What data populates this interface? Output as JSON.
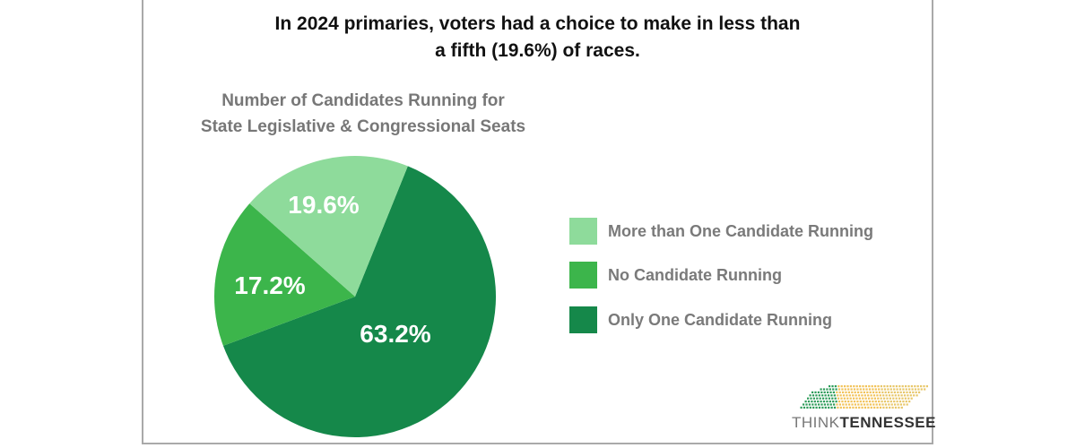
{
  "title_lines": [
    "In 2024 primaries, voters had a choice to make in less than",
    "a fifth (19.6%) of races."
  ],
  "logo": {
    "text_light": "THINK",
    "text_bold": "TENNESSEE"
  },
  "chart_data": {
    "type": "pie",
    "title": "Number of Candidates Running for State Legislative & Congressional Seats",
    "subtitle_lines": [
      "Number of Candidates Running for",
      "State Legislative & Congressional Seats"
    ],
    "slices": [
      {
        "label": "Only One Candidate Running",
        "value": 63.2,
        "data_label": "63.2%",
        "color": "#15884a"
      },
      {
        "label": "No Candidate Running",
        "value": 17.2,
        "data_label": "17.2%",
        "color": "#3cb54b"
      },
      {
        "label": "More than One Candidate Running",
        "value": 19.6,
        "data_label": "19.6%",
        "color": "#8edb9b"
      }
    ],
    "legend": [
      "More than One Candidate Running",
      "No Candidate Running",
      "Only One Candidate Running"
    ],
    "legend_colors": [
      "#8edb9b",
      "#3cb54b",
      "#15884a"
    ],
    "legend_position": "right"
  }
}
